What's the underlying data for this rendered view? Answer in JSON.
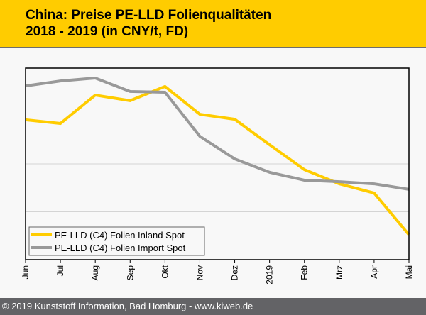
{
  "header": {
    "title_line1": "China: Preise PE-LLD Folienqualitäten",
    "title_line2": "2018 - 2019 (in CNY/t, FD)"
  },
  "footer": {
    "copyright": "© 2019 Kunststoff Information, Bad Homburg - www.kiweb.de"
  },
  "colors": {
    "header_bg": "#ffcc00",
    "footer_bg": "#636366",
    "inland": "#ffcc00",
    "import": "#999999",
    "gridline": "#d4d4d4"
  },
  "chart_data": {
    "type": "line",
    "title": "China: Preise PE-LLD Folienqualitäten 2018 - 2019 (in CNY/t, FD)",
    "xlabel": "",
    "ylabel": "",
    "y_units_note": "No y-axis tick labels shown; values are relative positions on a 0-100 scale of the plot height",
    "ylim": [
      0,
      100
    ],
    "y_gridlines": [
      25,
      50,
      75
    ],
    "grid": true,
    "legend_position": "bottom-left",
    "categories": [
      "Jun",
      "Jul",
      "Aug",
      "Sep",
      "Okt",
      "Nov",
      "Dez",
      "2019",
      "Feb",
      "Mrz",
      "Apr",
      "Mai"
    ],
    "series": [
      {
        "name": "PE-LLD (C4) Folien Inland Spot",
        "color": "#ffcc00",
        "values": [
          73.0,
          71.1,
          85.9,
          83.0,
          90.4,
          75.9,
          73.3,
          60.0,
          47.0,
          39.6,
          34.8,
          13.0
        ]
      },
      {
        "name": "PE-LLD (C4) Folien Import Spot",
        "color": "#999999",
        "values": [
          90.7,
          93.3,
          94.8,
          87.8,
          87.4,
          64.4,
          52.6,
          45.6,
          41.5,
          40.7,
          39.6,
          36.7
        ]
      }
    ]
  }
}
